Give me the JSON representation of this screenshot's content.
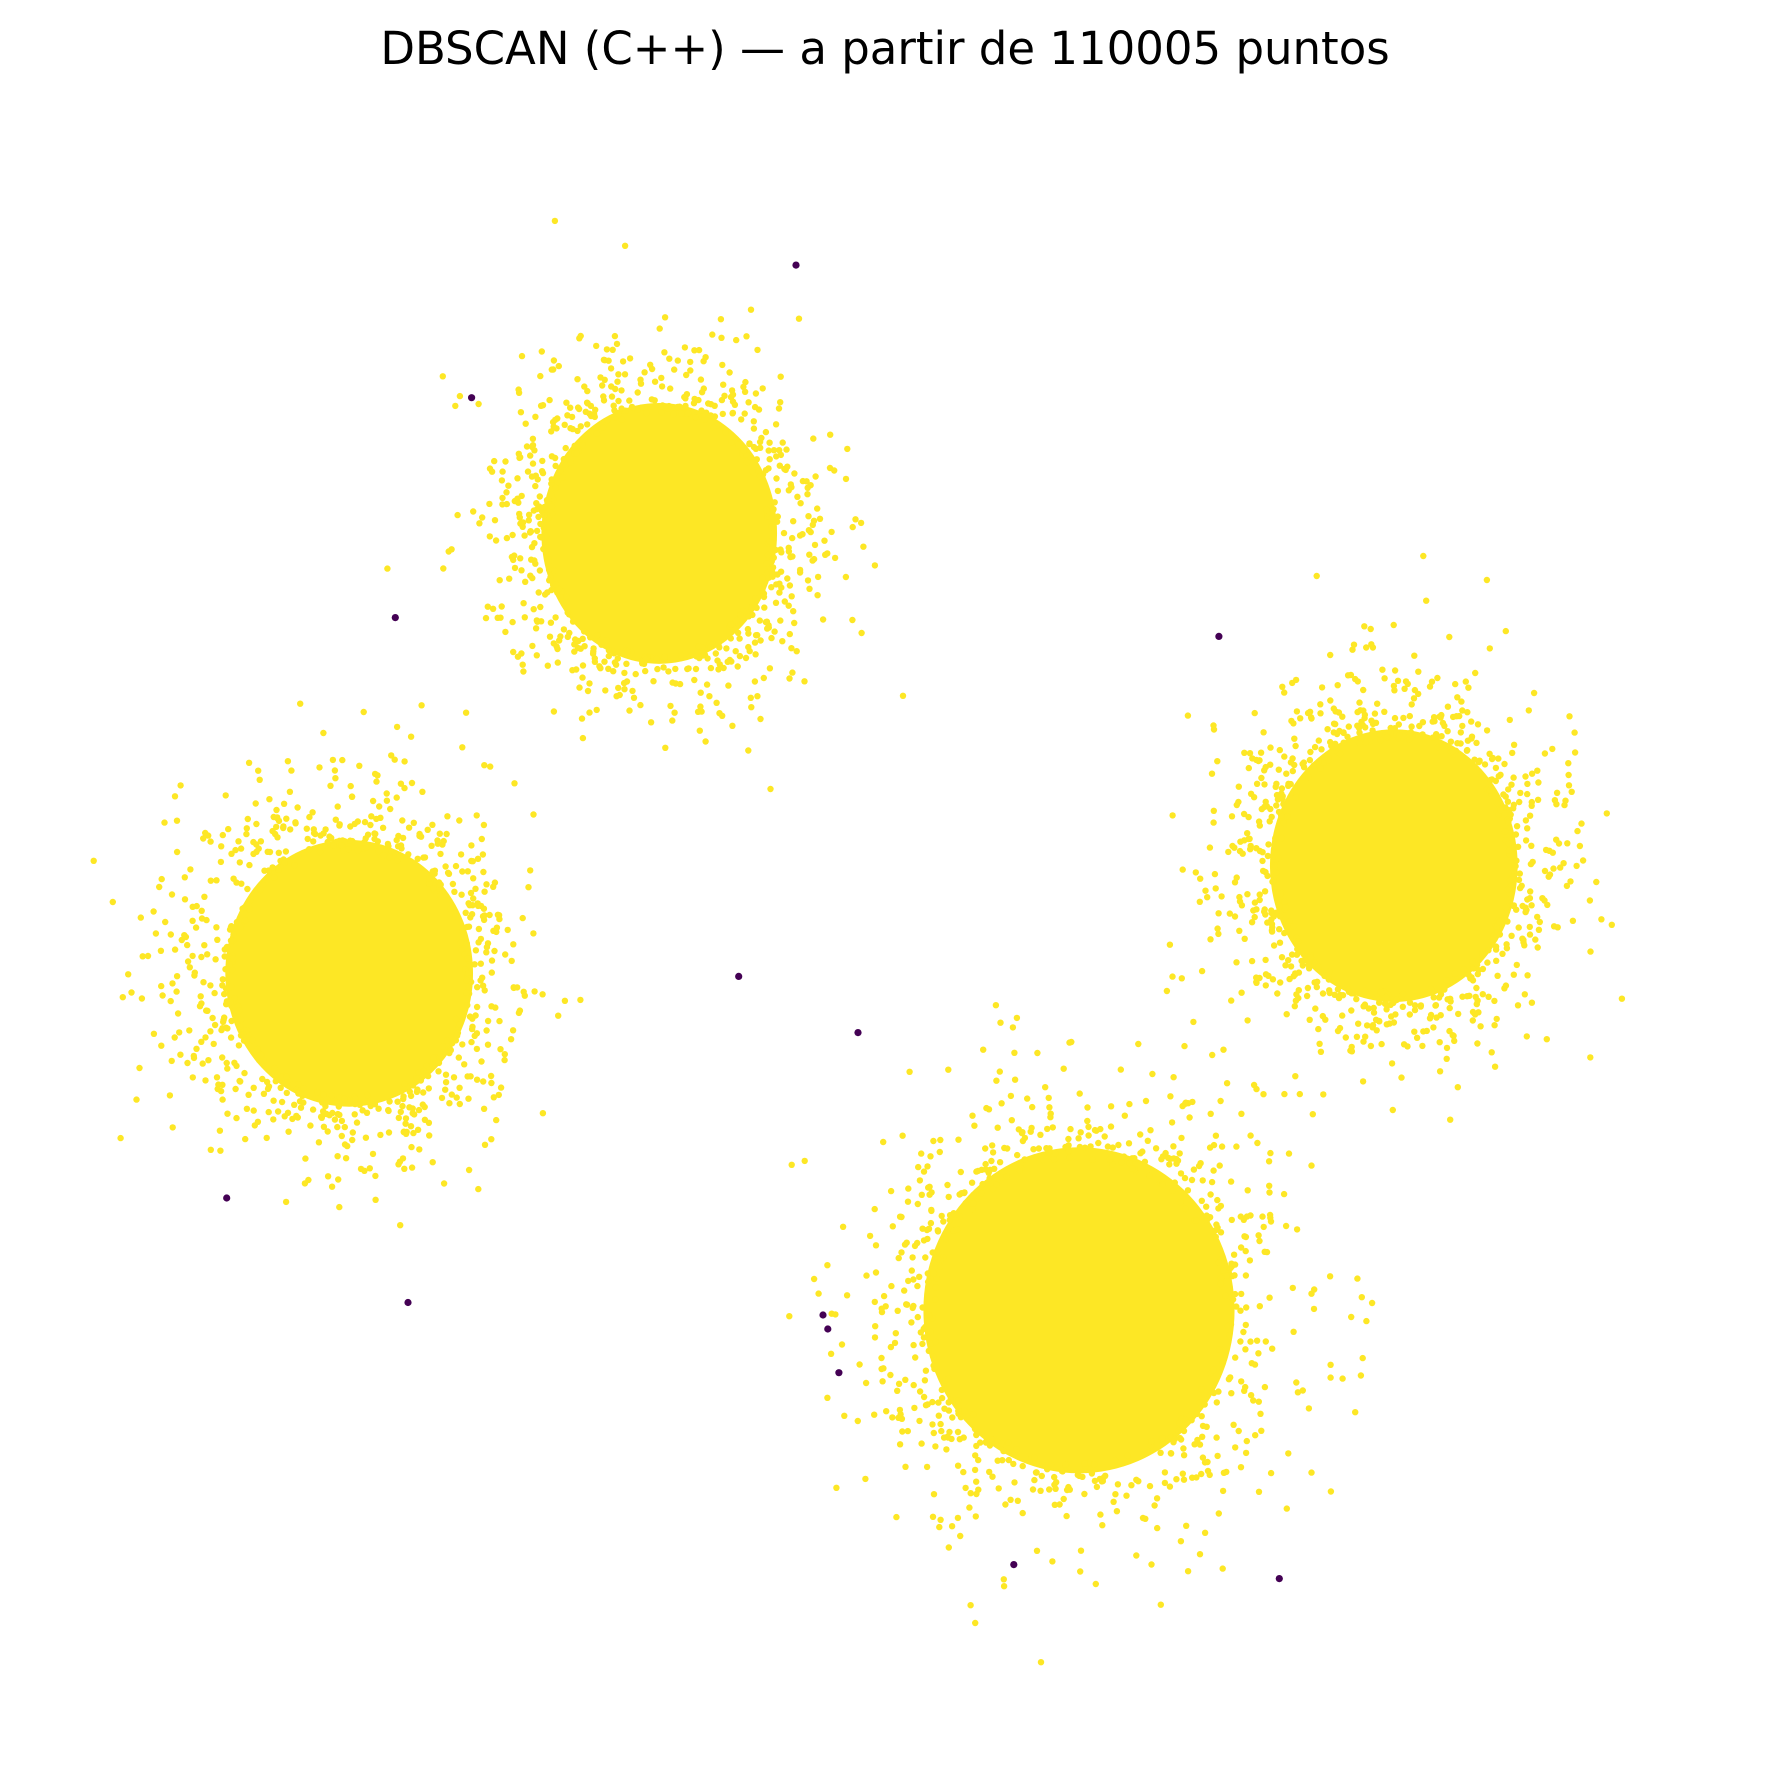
{
  "chart_data": {
    "type": "scatter",
    "title": "DBSCAN (C++) — a partir de 110005 puntos",
    "axes_visible": false,
    "grid": false,
    "legend": "none",
    "xlim": [
      0,
      1000
    ],
    "ylim": [
      0,
      1000
    ],
    "colors": {
      "cluster": "#FDE725",
      "noise": "#440154"
    },
    "clusters": [
      {
        "label": 0,
        "center": [
          358,
          735
        ],
        "spread": [
          78,
          88
        ]
      },
      {
        "label": 0,
        "center": [
          163,
          453
        ],
        "spread": [
          82,
          90
        ]
      },
      {
        "label": 0,
        "center": [
          622,
          237
        ],
        "spread": [
          103,
          110
        ]
      },
      {
        "label": 0,
        "center": [
          820,
          522
        ],
        "spread": [
          82,
          92
        ]
      }
    ],
    "noise_points": [
      [
        444,
        907
      ],
      [
        240,
        822
      ],
      [
        192,
        681
      ],
      [
        710,
        669
      ],
      [
        408,
        451
      ],
      [
        483,
        415
      ],
      [
        86,
        309
      ],
      [
        200,
        242
      ],
      [
        461,
        234
      ],
      [
        464,
        225
      ],
      [
        471,
        197
      ],
      [
        581,
        74
      ],
      [
        748,
        65
      ]
    ]
  }
}
